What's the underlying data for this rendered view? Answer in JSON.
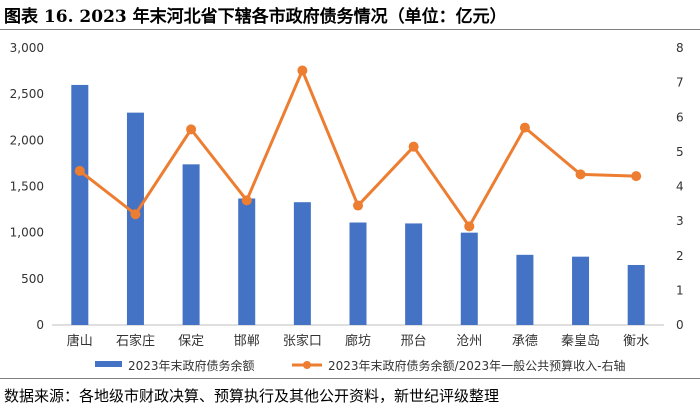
{
  "figure": {
    "title": "图表 16.  2023 年末河北省下辖各市政府债务情况（单位：亿元）",
    "source": "数据来源：各地级市财政决算、预算执行及其他公开资料，新世纪评级整理"
  },
  "chart_data": {
    "type": "bar+line",
    "categories": [
      "唐山",
      "石家庄",
      "保定",
      "邯郸",
      "张家口",
      "廊坊",
      "邢台",
      "沧州",
      "承德",
      "秦皇岛",
      "衡水"
    ],
    "series": [
      {
        "name": "2023年末政府债务余额",
        "type": "bar",
        "axis": "left",
        "color": "#4472C4",
        "values": [
          2600,
          2300,
          1740,
          1370,
          1330,
          1110,
          1100,
          1000,
          760,
          740,
          650
        ]
      },
      {
        "name": "2023年末政府债务余额/2023年一般公共预算收入-右轴",
        "type": "line",
        "axis": "right",
        "color": "#ED7D31",
        "values": [
          4.45,
          3.2,
          5.65,
          3.6,
          7.35,
          3.45,
          5.15,
          2.85,
          5.7,
          4.35,
          4.3
        ]
      }
    ],
    "left_axis": {
      "min": 0,
      "max": 3000,
      "step": 500,
      "ticks": [
        "0",
        "500",
        "1,000",
        "1,500",
        "2,000",
        "2,500",
        "3,000"
      ]
    },
    "right_axis": {
      "min": 0,
      "max": 8,
      "step": 1,
      "ticks": [
        "0",
        "1",
        "2",
        "3",
        "4",
        "5",
        "6",
        "7",
        "8"
      ]
    },
    "legend_position": "bottom",
    "grid": false
  }
}
